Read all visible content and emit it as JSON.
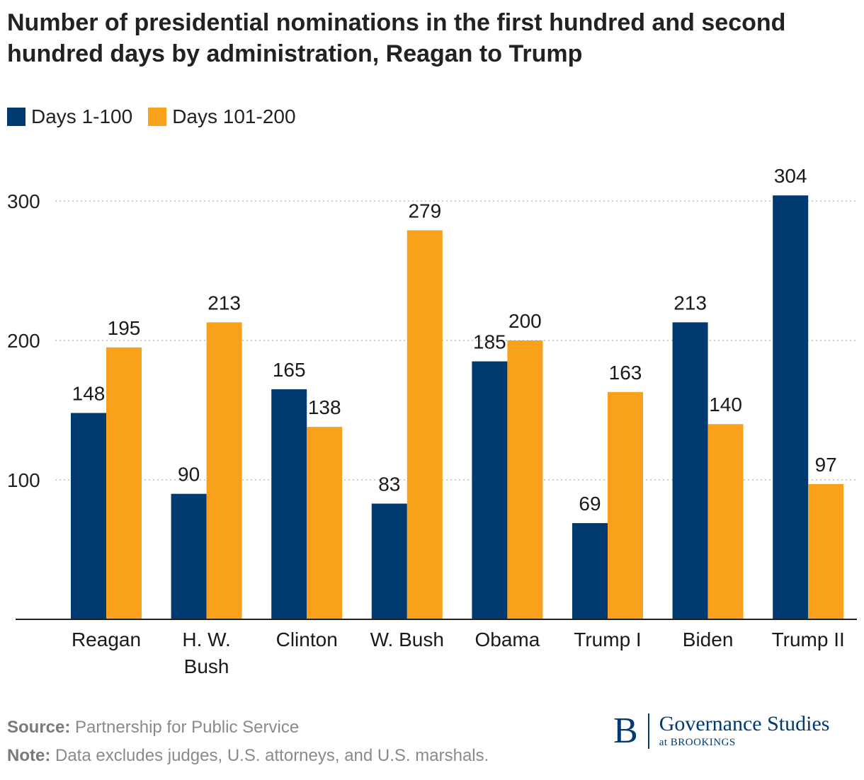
{
  "title": "Number of presidential nominations in the first hundred and second hundred days by administration, Reagan to Trump",
  "colors": {
    "days_1_100": "#003a70",
    "days_101_200": "#f9a11b",
    "grid": "#bdbdbd",
    "axis": "#222222"
  },
  "chart_data": {
    "type": "bar",
    "title": "Number of presidential nominations in the first hundred and second hundred days by administration, Reagan to Trump",
    "xlabel": "",
    "ylabel": "",
    "categories": [
      [
        "Reagan"
      ],
      [
        "H. W.",
        "Bush"
      ],
      [
        "Clinton"
      ],
      [
        "W. Bush"
      ],
      [
        "Obama"
      ],
      [
        "Trump I"
      ],
      [
        "Biden"
      ],
      [
        "Trump II"
      ]
    ],
    "series": [
      {
        "name": "Days 1-100",
        "color": "#003a70",
        "values": [
          148,
          90,
          165,
          83,
          185,
          69,
          213,
          304
        ]
      },
      {
        "name": "Days 101-200",
        "color": "#f9a11b",
        "values": [
          195,
          213,
          138,
          279,
          200,
          163,
          140,
          97
        ]
      }
    ],
    "ylim": [
      0,
      310
    ],
    "yticks": [
      100,
      200,
      300
    ],
    "grid": true,
    "legend": "top-left"
  },
  "footer": {
    "source_label": "Source:",
    "source_text": "Partnership for Public Service",
    "note_label": "Note:",
    "note_text": "Data excludes judges, U.S. attorneys, and U.S. marshals."
  },
  "logo": {
    "letter": "B",
    "name": "Governance Studies",
    "sub": "at BROOKINGS"
  }
}
